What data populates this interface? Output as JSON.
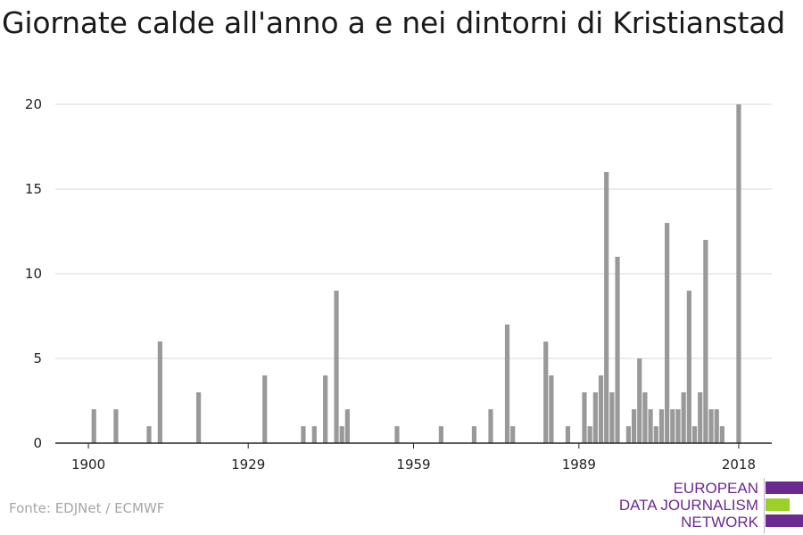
{
  "title": "Giornate calde all'anno a e nei dintorni di Kristianstad",
  "source": "Fonte: EDJNet / ECMWF",
  "logo": {
    "lines": [
      "EUROPEAN",
      "DATA JOURNALISM",
      "NETWORK"
    ],
    "colors": {
      "purple": "#6b2a8f",
      "green": "#9ccf29"
    }
  },
  "chart_data": {
    "type": "bar",
    "bar_color": "#999999",
    "x_ticks": [
      1900,
      1929,
      1959,
      1989,
      2018
    ],
    "y_ticks": [
      0,
      5,
      10,
      15,
      20
    ],
    "xlim": [
      1894,
      2024
    ],
    "ylim": [
      0,
      20
    ],
    "grid": true,
    "series": [
      {
        "years": [
          1901,
          1905,
          1911,
          1913,
          1920,
          1932,
          1939,
          1941,
          1943,
          1945,
          1946,
          1947,
          1956,
          1964,
          1970,
          1973,
          1976,
          1977,
          1983,
          1984,
          1987,
          1990,
          1991,
          1992,
          1993,
          1994,
          1995,
          1996,
          1998,
          1999,
          2000,
          2001,
          2002,
          2003,
          2004,
          2005,
          2006,
          2007,
          2008,
          2009,
          2010,
          2011,
          2012,
          2013,
          2014,
          2015,
          2018
        ],
        "values": [
          2,
          2,
          1,
          6,
          3,
          4,
          1,
          1,
          4,
          9,
          1,
          2,
          1,
          1,
          1,
          2,
          7,
          1,
          6,
          4,
          1,
          3,
          1,
          3,
          4,
          16,
          3,
          11,
          1,
          2,
          5,
          3,
          2,
          1,
          2,
          13,
          2,
          2,
          3,
          9,
          1,
          3,
          12,
          2,
          2,
          1,
          20
        ]
      }
    ]
  }
}
